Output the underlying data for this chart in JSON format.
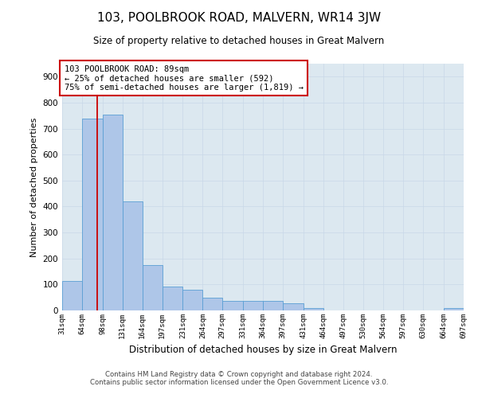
{
  "title": "103, POOLBROOK ROAD, MALVERN, WR14 3JW",
  "subtitle": "Size of property relative to detached houses in Great Malvern",
  "xlabel": "Distribution of detached houses by size in Great Malvern",
  "ylabel": "Number of detached properties",
  "footer_line1": "Contains HM Land Registry data © Crown copyright and database right 2024.",
  "footer_line2": "Contains public sector information licensed under the Open Government Licence v3.0.",
  "annotation_line1": "103 POOLBROOK ROAD: 89sqm",
  "annotation_line2": "← 25% of detached houses are smaller (592)",
  "annotation_line3": "75% of semi-detached houses are larger (1,819) →",
  "property_size": 89,
  "bar_color": "#aec6e8",
  "bar_edge_color": "#5a9fd4",
  "redline_color": "#cc0000",
  "annotation_box_color": "#cc0000",
  "grid_color": "#c8d8e8",
  "background_color": "#dce8f0",
  "ylim": [
    0,
    950
  ],
  "yticks": [
    0,
    100,
    200,
    300,
    400,
    500,
    600,
    700,
    800,
    900
  ],
  "bin_edges": [
    31,
    64,
    98,
    131,
    164,
    197,
    231,
    264,
    297,
    331,
    364,
    397,
    431,
    464,
    497,
    530,
    564,
    597,
    630,
    664,
    697
  ],
  "bar_heights": [
    112,
    740,
    755,
    420,
    175,
    93,
    80,
    50,
    38,
    38,
    38,
    28,
    10,
    0,
    0,
    0,
    0,
    0,
    0,
    8
  ]
}
